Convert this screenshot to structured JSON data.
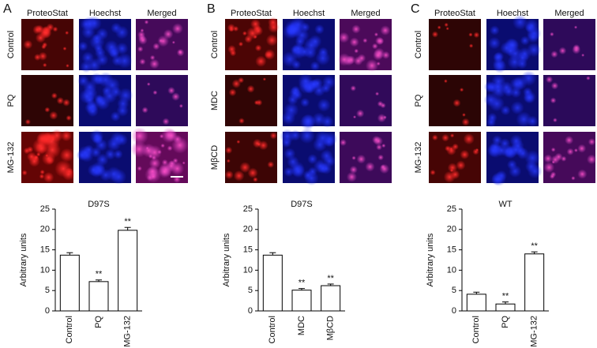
{
  "panels": [
    {
      "letter": "A",
      "columns": [
        "ProteoStat",
        "Hoechst",
        "Merged"
      ],
      "rows": [
        "Control",
        "PQ",
        "MG-132"
      ]
    },
    {
      "letter": "B",
      "columns": [
        "ProteoStat",
        "Hoechst",
        "Merged"
      ],
      "rows": [
        "Control",
        "MDC",
        "MβCD"
      ]
    },
    {
      "letter": "C",
      "columns": [
        "ProteoStat",
        "Hoechst",
        "Merged"
      ],
      "rows": [
        "Control",
        "PQ",
        "MG-132"
      ]
    }
  ],
  "chart_data": [
    {
      "type": "bar",
      "title": "D97S",
      "y_label": "Arbitrary units",
      "categories": [
        "Control",
        "PQ",
        "MG-132"
      ],
      "values": [
        13.7,
        7.2,
        19.8
      ],
      "errors": [
        0.6,
        0.4,
        0.7
      ],
      "significance": [
        null,
        "**",
        "**"
      ],
      "color": "#ffffff",
      "ylim": [
        0,
        25
      ],
      "yticks": [
        0,
        5,
        10,
        15,
        20,
        25
      ]
    },
    {
      "type": "bar",
      "title": "D97S",
      "y_label": "Arbitrary units",
      "categories": [
        "Control",
        "MDC",
        "MβCD"
      ],
      "values": [
        13.7,
        5.1,
        6.2
      ],
      "errors": [
        0.6,
        0.4,
        0.4
      ],
      "significance": [
        null,
        "**",
        "**"
      ],
      "color": "#ffffff",
      "ylim": [
        0,
        25
      ],
      "yticks": [
        0,
        5,
        10,
        15,
        20,
        25
      ]
    },
    {
      "type": "bar",
      "title": "WT",
      "y_label": "Arbitrary units",
      "categories": [
        "Control",
        "PQ",
        "MG-132"
      ],
      "values": [
        4.1,
        1.7,
        14.0
      ],
      "errors": [
        0.5,
        0.5,
        0.5
      ],
      "significance": [
        null,
        "**",
        "**"
      ],
      "color": "#ffffff",
      "ylim": [
        0,
        25
      ],
      "yticks": [
        0,
        5,
        10,
        15,
        20,
        25
      ]
    }
  ]
}
